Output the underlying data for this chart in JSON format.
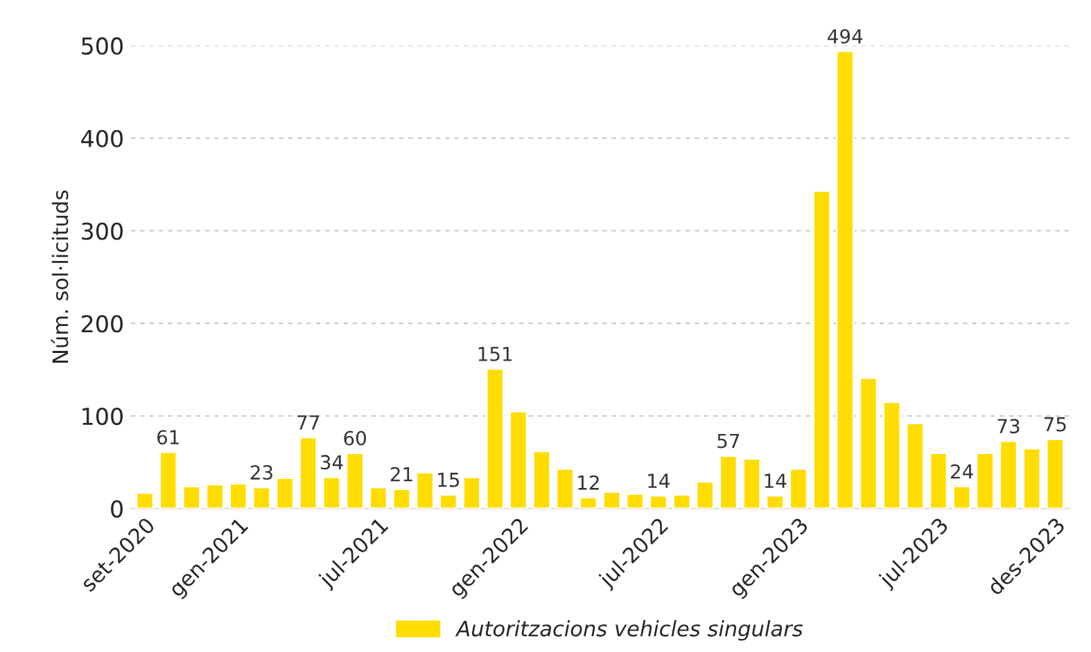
{
  "chart_data": {
    "type": "bar",
    "ylabel": "Núm. sol·licituds",
    "categories": [
      "set-2020",
      null,
      null,
      null,
      "gen-2021",
      null,
      null,
      null,
      null,
      null,
      "jul-2021",
      null,
      null,
      null,
      null,
      null,
      "gen-2022",
      null,
      null,
      null,
      null,
      null,
      "jul-2022",
      null,
      null,
      null,
      null,
      null,
      "gen-2023",
      null,
      null,
      null,
      null,
      null,
      "jul-2023",
      null,
      null,
      null,
      null,
      "des-2023"
    ],
    "series": [
      {
        "name": "Autoritzacions vehicles singulars",
        "color": "#ffdd00",
        "values": [
          17,
          61,
          24,
          26,
          27,
          23,
          33,
          77,
          34,
          60,
          23,
          21,
          39,
          15,
          34,
          151,
          105,
          62,
          43,
          12,
          18,
          16,
          14,
          15,
          29,
          57,
          54,
          14,
          43,
          343,
          494,
          141,
          115,
          92,
          60,
          24,
          60,
          73,
          65,
          75
        ],
        "value_labels": [
          null,
          "61",
          null,
          null,
          null,
          "23",
          null,
          "77",
          "34",
          "60",
          null,
          "21",
          null,
          "15",
          null,
          "151",
          null,
          null,
          null,
          "12",
          null,
          null,
          "14",
          null,
          null,
          "57",
          null,
          "14",
          null,
          null,
          "494",
          null,
          null,
          null,
          null,
          "24",
          null,
          "73",
          null,
          "75"
        ]
      }
    ],
    "ylim": [
      0,
      500
    ],
    "yticks": [
      0,
      100,
      200,
      300,
      400,
      500
    ],
    "grid": "y",
    "legend": "bottom"
  }
}
